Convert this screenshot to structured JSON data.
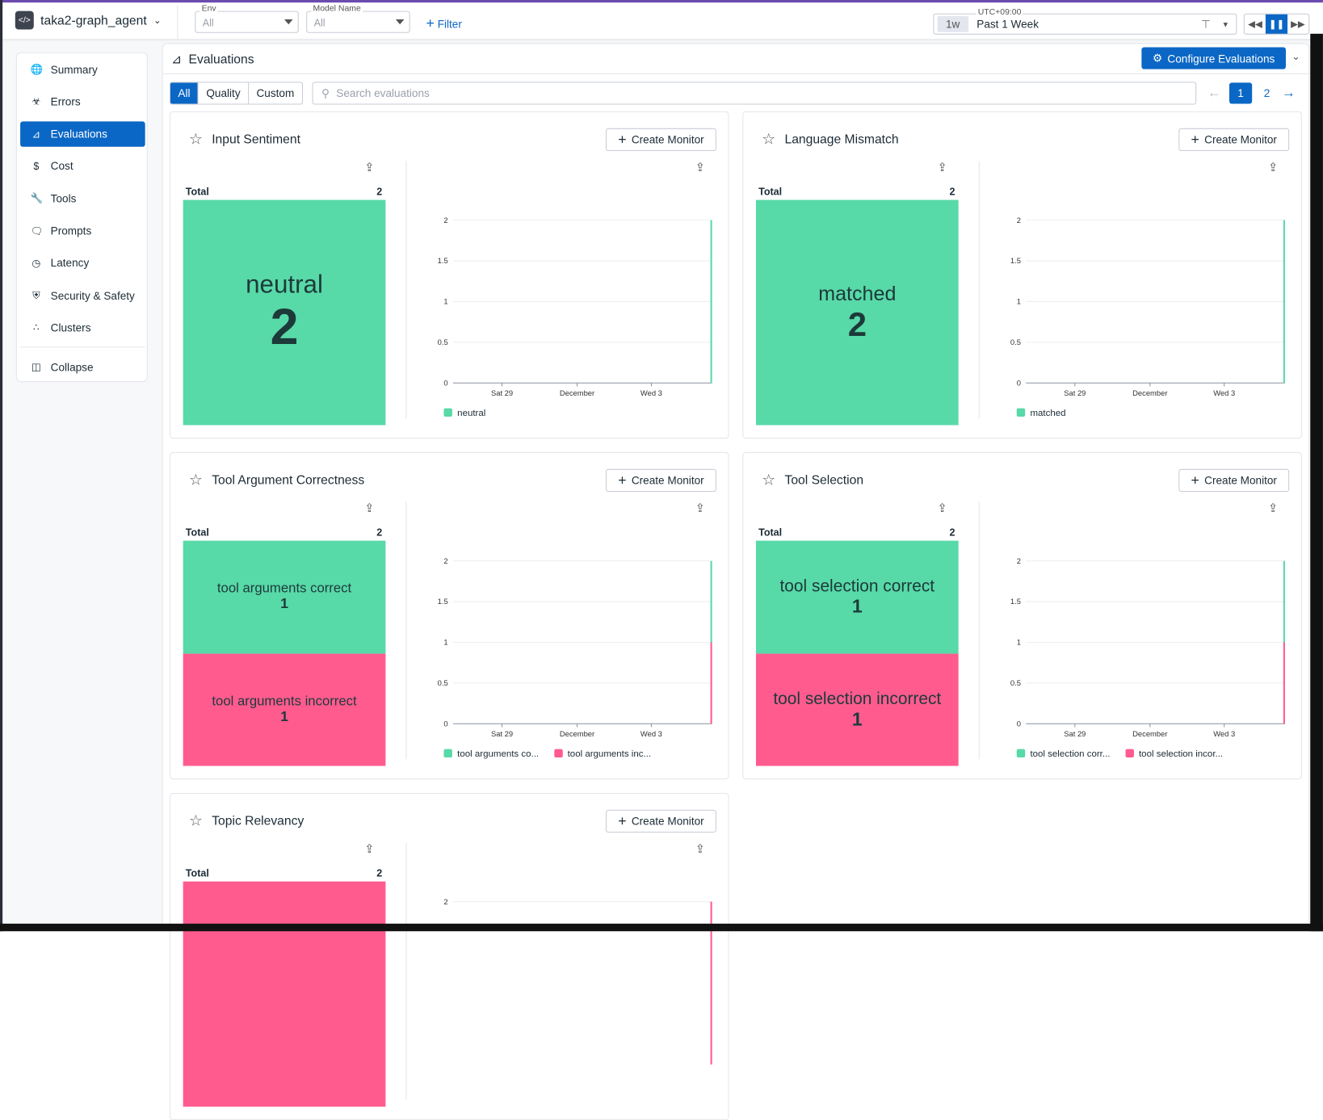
{
  "topbar": {
    "app_name": "taka2-graph_agent",
    "env": {
      "label": "Env",
      "value": "All"
    },
    "model": {
      "label": "Model Name",
      "value": "All"
    },
    "filter_label": "Filter",
    "timezone": "UTC+09:00",
    "time_badge": "1w",
    "time_range": "Past 1 Week"
  },
  "sidebar": {
    "items": [
      {
        "label": "Summary",
        "icon": "globe-icon"
      },
      {
        "label": "Errors",
        "icon": "bug-icon"
      },
      {
        "label": "Evaluations",
        "icon": "chart-icon",
        "active": true
      },
      {
        "label": "Cost",
        "icon": "dollar-icon"
      },
      {
        "label": "Tools",
        "icon": "wrench-icon"
      },
      {
        "label": "Prompts",
        "icon": "prompt-icon"
      },
      {
        "label": "Latency",
        "icon": "clock-icon"
      },
      {
        "label": "Security & Safety",
        "icon": "shield-icon"
      },
      {
        "label": "Clusters",
        "icon": "clusters-icon"
      }
    ],
    "collapse": "Collapse"
  },
  "main": {
    "title": "Evaluations",
    "configure": "Configure Evaluations",
    "tabs": [
      "All",
      "Quality",
      "Custom"
    ],
    "search_placeholder": "Search evaluations",
    "pages": [
      "1",
      "2"
    ],
    "create_monitor": "Create Monitor",
    "total_label": "Total"
  },
  "colors": {
    "accent": "#0b67c5",
    "green": "#58d9a8",
    "pink": "#ff5b8f"
  },
  "chart_data": [
    {
      "title": "Input Sentiment",
      "type": "bar",
      "total": "2",
      "x_ticks": [
        "Sat 29",
        "December",
        "Wed 3"
      ],
      "y_ticks": [
        "0",
        "0.5",
        "1",
        "1.5",
        "2"
      ],
      "ylim": [
        0,
        2
      ],
      "series": [
        {
          "name": "neutral",
          "legend": "neutral",
          "value": "2",
          "color": "#58d9a8"
        }
      ]
    },
    {
      "title": "Language Mismatch",
      "type": "bar",
      "total": "2",
      "x_ticks": [
        "Sat 29",
        "December",
        "Wed 3"
      ],
      "y_ticks": [
        "0",
        "0.5",
        "1",
        "1.5",
        "2"
      ],
      "ylim": [
        0,
        2
      ],
      "series": [
        {
          "name": "matched",
          "legend": "matched",
          "value": "2",
          "color": "#58d9a8"
        }
      ]
    },
    {
      "title": "Tool Argument Correctness",
      "type": "bar",
      "total": "2",
      "x_ticks": [
        "Sat 29",
        "December",
        "Wed 3"
      ],
      "y_ticks": [
        "0",
        "0.5",
        "1",
        "1.5",
        "2"
      ],
      "ylim": [
        0,
        2
      ],
      "series": [
        {
          "name": "tool arguments correct",
          "legend": "tool arguments co...",
          "value": "1",
          "color": "#58d9a8"
        },
        {
          "name": "tool arguments incorrect",
          "legend": "tool arguments inc...",
          "value": "1",
          "color": "#ff5b8f"
        }
      ]
    },
    {
      "title": "Tool Selection",
      "type": "bar",
      "total": "2",
      "x_ticks": [
        "Sat 29",
        "December",
        "Wed 3"
      ],
      "y_ticks": [
        "0",
        "0.5",
        "1",
        "1.5",
        "2"
      ],
      "ylim": [
        0,
        2
      ],
      "series": [
        {
          "name": "tool selection correct",
          "legend": "tool selection corr...",
          "value": "1",
          "color": "#58d9a8"
        },
        {
          "name": "tool selection incorrect",
          "legend": "tool selection incor...",
          "value": "1",
          "color": "#ff5b8f"
        }
      ]
    },
    {
      "title": "Topic Relevancy",
      "type": "bar",
      "total": "2",
      "x_ticks": [],
      "y_ticks": [
        "2"
      ],
      "ylim": [
        0,
        2
      ],
      "series": [
        {
          "value": "2",
          "color": "#ff5b8f"
        }
      ]
    }
  ]
}
